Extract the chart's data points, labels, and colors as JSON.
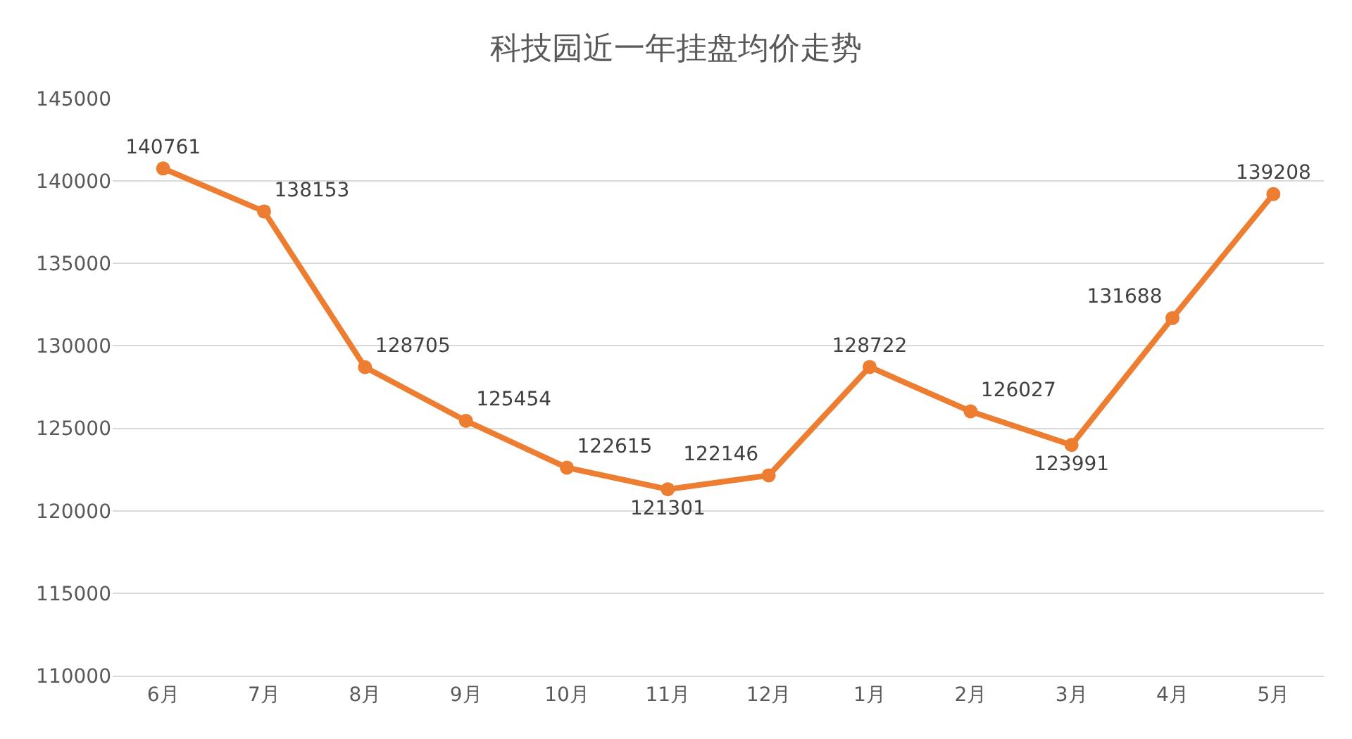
{
  "chart_data": {
    "type": "line",
    "title": "科技园近一年挂盘均价走势",
    "categories": [
      "6月",
      "7月",
      "8月",
      "9月",
      "10月",
      "11月",
      "12月",
      "1月",
      "2月",
      "3月",
      "4月",
      "5月"
    ],
    "series": [
      {
        "color": "#ed7d31",
        "values": [
          140761,
          138153,
          128705,
          125454,
          122615,
          121301,
          122146,
          128722,
          126027,
          123991,
          131688,
          139208
        ]
      }
    ],
    "ylim": [
      110000,
      145000
    ],
    "yticks": [
      110000,
      115000,
      120000,
      125000,
      130000,
      135000,
      140000,
      145000
    ],
    "grid": "y",
    "marker": "circle",
    "line_style": "solid",
    "data_labels": true
  }
}
